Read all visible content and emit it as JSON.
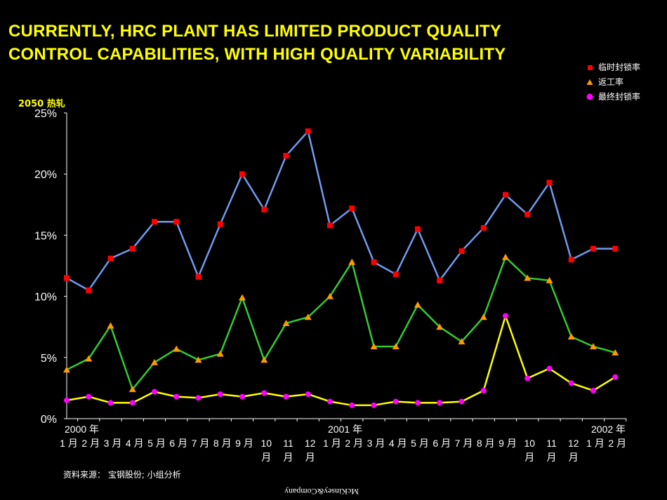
{
  "title_line1": "CURRENTLY, HRC PLANT HAS LIMITED PRODUCT QUALITY",
  "title_line2": "CONTROL CAPABILITIES, WITH HIGH QUALITY VARIABILITY",
  "unit_label": "2050 热轧",
  "source": "资料来源：  宝钢股份; 小组分析",
  "logo_text": "McKinsey&Company",
  "colors": {
    "background": "#000000",
    "title": "#ffff00",
    "series1_line": "#6f9cf0",
    "series1_marker": "#ff0000",
    "series2_line": "#33cc33",
    "series2_marker": "#ff9900",
    "series3_line": "#ffff00",
    "series3_marker": "#ff00ff"
  },
  "chart_data": {
    "type": "line",
    "title": "CURRENTLY, HRC PLANT HAS LIMITED PRODUCT QUALITY CONTROL CAPABILITIES, WITH HIGH QUALITY VARIABILITY",
    "ylim": [
      0,
      25
    ],
    "yticks": [
      "0%",
      "5%",
      "10%",
      "15%",
      "20%",
      "25%"
    ],
    "ytick_values": [
      0,
      5,
      10,
      15,
      20,
      25
    ],
    "year_labels": [
      {
        "index": 0,
        "label": "2000 年"
      },
      {
        "index": 12,
        "label": "2001 年"
      },
      {
        "index": 24,
        "label": "2002 年"
      }
    ],
    "categories": [
      [
        "1 月"
      ],
      [
        "2 月"
      ],
      [
        "3 月"
      ],
      [
        "4 月"
      ],
      [
        "5 月"
      ],
      [
        "6 月"
      ],
      [
        "7 月"
      ],
      [
        "8 月"
      ],
      [
        "9 月"
      ],
      [
        "10",
        "月"
      ],
      [
        "11",
        "月"
      ],
      [
        "12",
        "月"
      ],
      [
        "1 月"
      ],
      [
        "2 月"
      ],
      [
        "3 月"
      ],
      [
        "4 月"
      ],
      [
        "5 月"
      ],
      [
        "6 月"
      ],
      [
        "7 月"
      ],
      [
        "8 月"
      ],
      [
        "9 月"
      ],
      [
        "10",
        "月"
      ],
      [
        "11",
        "月"
      ],
      [
        "12",
        "月"
      ],
      [
        "1 月"
      ],
      [
        "2 月"
      ]
    ],
    "legend_position": "top-right",
    "grid": false,
    "series": [
      {
        "name": "临时封锁率",
        "marker": "square",
        "values": [
          11.5,
          10.5,
          13.1,
          13.9,
          16.1,
          16.1,
          11.6,
          15.9,
          20.0,
          17.1,
          21.5,
          23.5,
          15.8,
          17.2,
          12.8,
          11.8,
          15.5,
          11.3,
          13.7,
          15.6,
          18.3,
          16.7,
          19.3,
          13.0,
          13.9,
          13.9
        ]
      },
      {
        "name": "返工率",
        "marker": "triangle",
        "values": [
          4.0,
          4.9,
          7.6,
          2.4,
          4.6,
          5.7,
          4.8,
          5.3,
          9.9,
          4.8,
          7.8,
          8.3,
          10.0,
          12.8,
          5.9,
          5.9,
          9.3,
          7.5,
          6.3,
          8.3,
          13.2,
          11.5,
          11.3,
          6.7,
          5.9,
          5.4
        ]
      },
      {
        "name": "最终封锁率",
        "marker": "circle",
        "values": [
          1.5,
          1.8,
          1.3,
          1.3,
          2.2,
          1.8,
          1.7,
          2.0,
          1.8,
          2.1,
          1.8,
          2.0,
          1.4,
          1.1,
          1.1,
          1.4,
          1.3,
          1.3,
          1.4,
          2.3,
          8.4,
          3.3,
          4.1,
          2.9,
          2.3,
          3.4
        ]
      }
    ]
  }
}
